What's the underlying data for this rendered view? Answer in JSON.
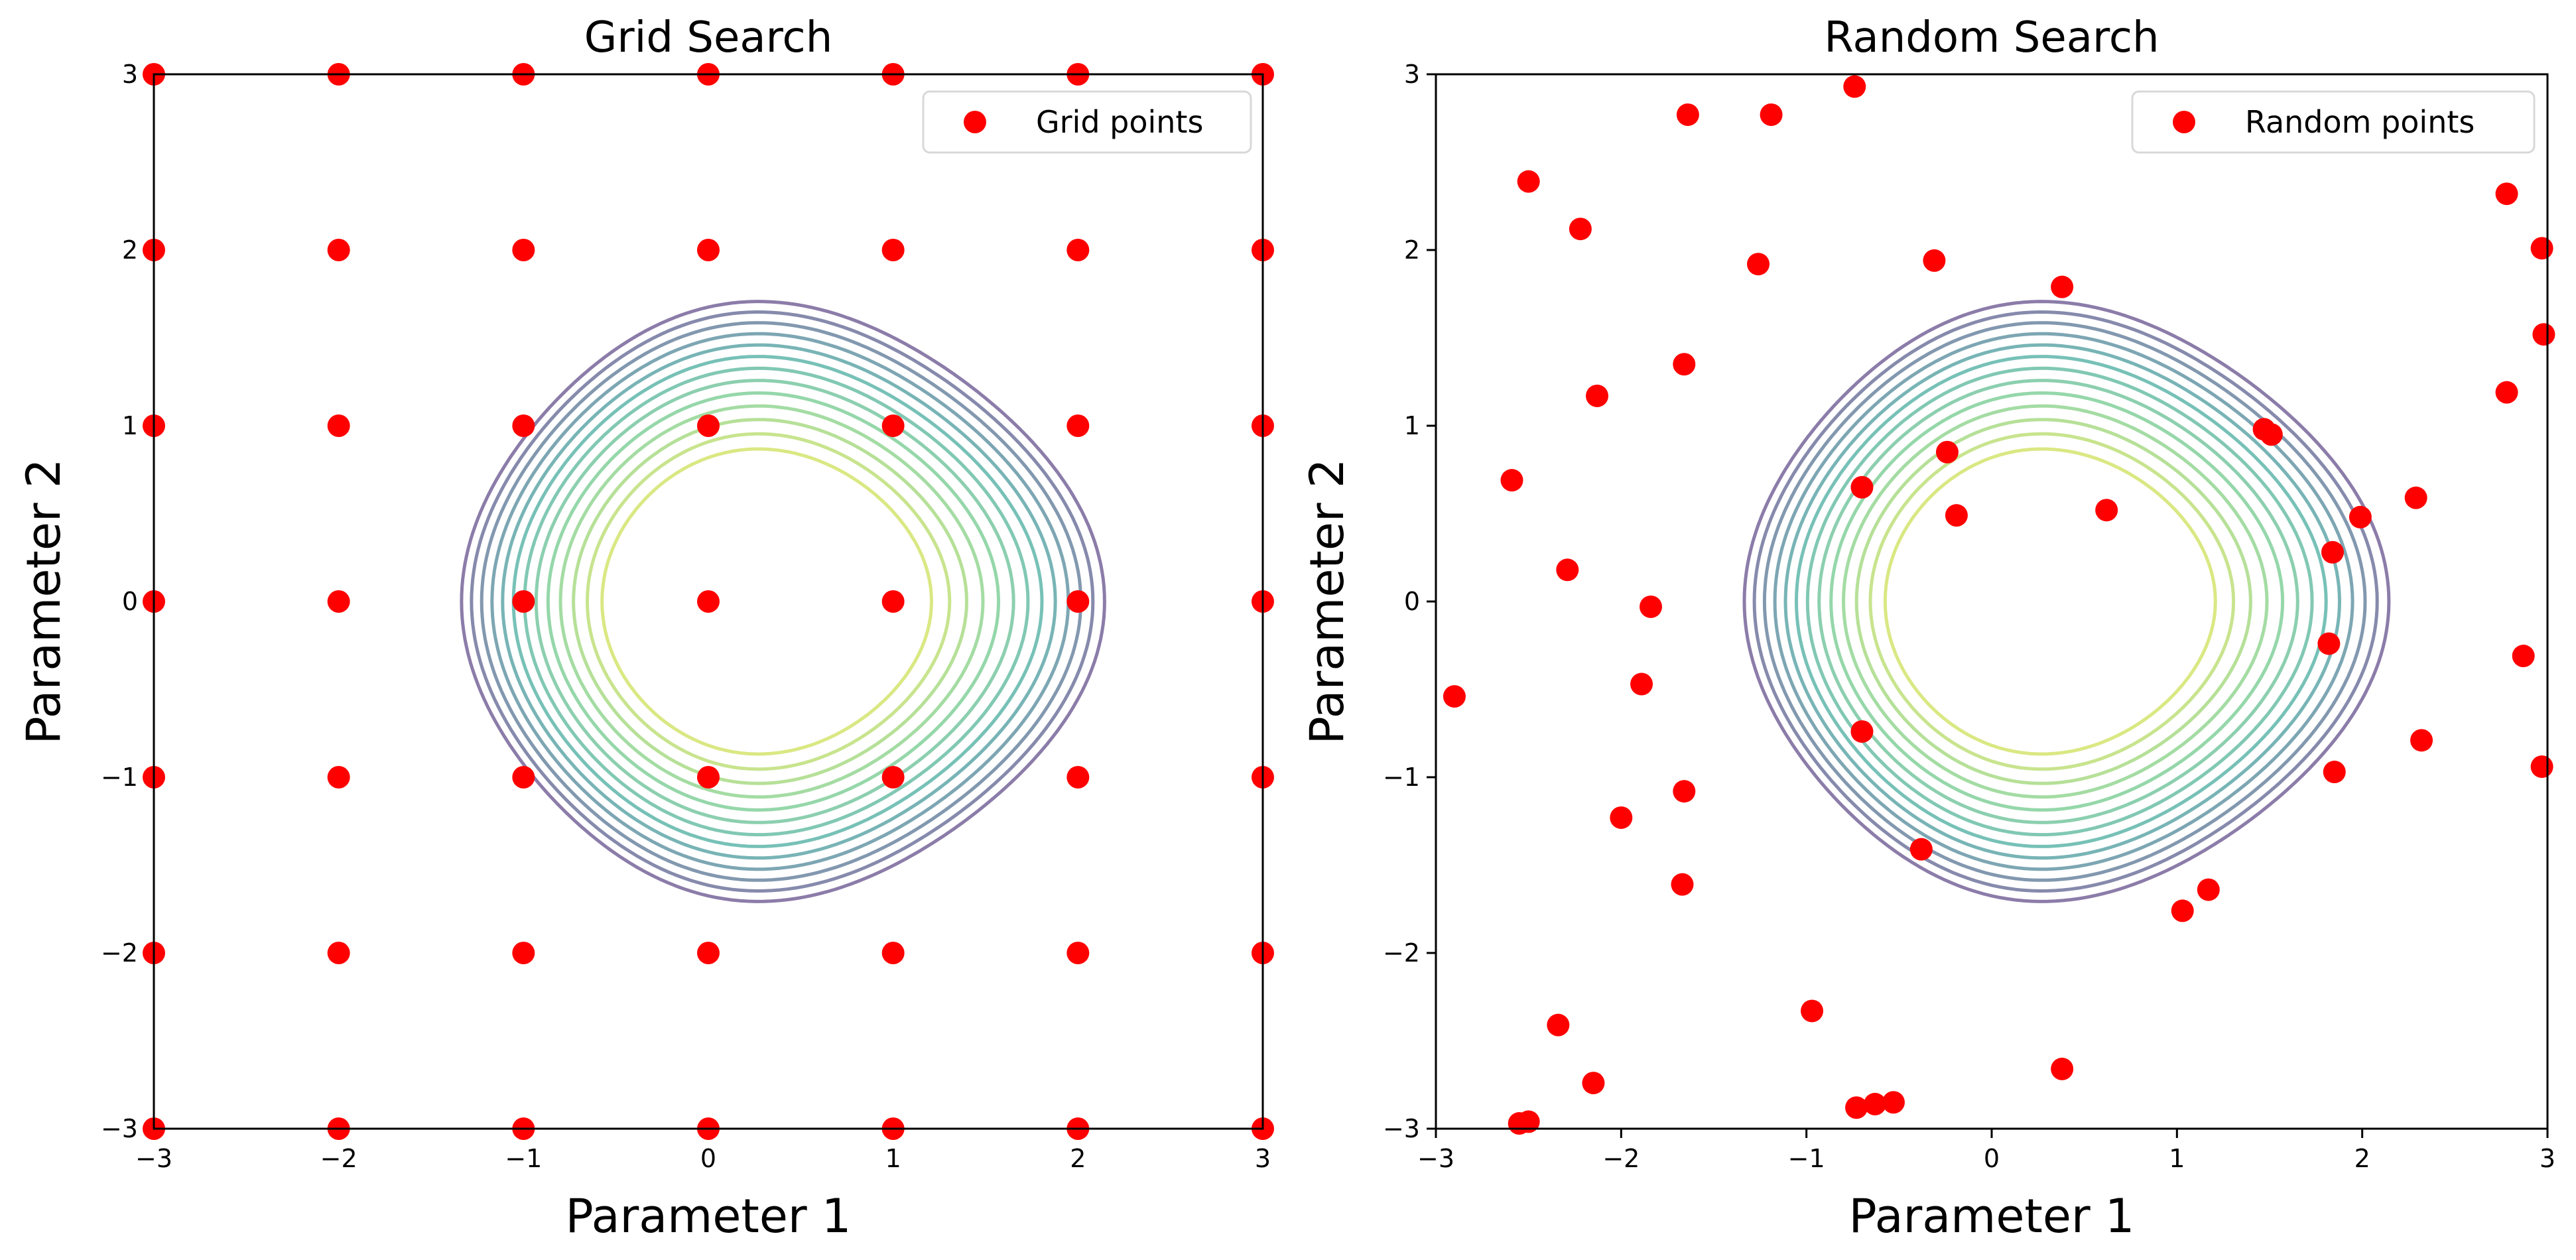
{
  "chart_data": [
    {
      "type": "scatter",
      "title": "Grid Search",
      "xlabel": "Parameter 1",
      "ylabel": "Parameter 2",
      "xlim": [
        -3,
        3
      ],
      "ylim": [
        -3,
        3
      ],
      "xticks": [
        -3,
        -2,
        -1,
        0,
        1,
        2,
        3
      ],
      "yticks": [
        -3,
        -2,
        -1,
        0,
        1,
        2,
        3
      ],
      "xtick_labels": [
        "−3",
        "−2",
        "−1",
        "0",
        "1",
        "2",
        "3"
      ],
      "ytick_labels": [
        "−3",
        "−2",
        "−1",
        "0",
        "1",
        "2",
        "3"
      ],
      "grid": false,
      "legend": {
        "position": "upper-right",
        "entries": [
          "Grid points"
        ]
      },
      "background": "contour",
      "series": [
        {
          "name": "Grid points",
          "color": "#ff0000",
          "points": [
            [
              -3,
              -3
            ],
            [
              -2,
              -3
            ],
            [
              -1,
              -3
            ],
            [
              0,
              -3
            ],
            [
              1,
              -3
            ],
            [
              2,
              -3
            ],
            [
              3,
              -3
            ],
            [
              -3,
              -2
            ],
            [
              -2,
              -2
            ],
            [
              -1,
              -2
            ],
            [
              0,
              -2
            ],
            [
              1,
              -2
            ],
            [
              2,
              -2
            ],
            [
              3,
              -2
            ],
            [
              -3,
              -1
            ],
            [
              -2,
              -1
            ],
            [
              -1,
              -1
            ],
            [
              0,
              -1
            ],
            [
              1,
              -1
            ],
            [
              2,
              -1
            ],
            [
              3,
              -1
            ],
            [
              -3,
              0
            ],
            [
              -2,
              0
            ],
            [
              -1,
              0
            ],
            [
              0,
              0
            ],
            [
              1,
              0
            ],
            [
              2,
              0
            ],
            [
              3,
              0
            ],
            [
              -3,
              1
            ],
            [
              -2,
              1
            ],
            [
              -1,
              1
            ],
            [
              0,
              1
            ],
            [
              1,
              1
            ],
            [
              2,
              1
            ],
            [
              3,
              1
            ],
            [
              -3,
              2
            ],
            [
              -2,
              2
            ],
            [
              -1,
              2
            ],
            [
              0,
              2
            ],
            [
              1,
              2
            ],
            [
              2,
              2
            ],
            [
              3,
              2
            ],
            [
              -3,
              3
            ],
            [
              -2,
              3
            ],
            [
              -1,
              3
            ],
            [
              0,
              3
            ],
            [
              1,
              3
            ],
            [
              2,
              3
            ],
            [
              3,
              3
            ]
          ]
        }
      ]
    },
    {
      "type": "scatter",
      "title": "Random Search",
      "xlabel": "Parameter 1",
      "ylabel": "Parameter 2",
      "xlim": [
        -3,
        3
      ],
      "ylim": [
        -3,
        3
      ],
      "xticks": [
        -3,
        -2,
        -1,
        0,
        1,
        2,
        3
      ],
      "yticks": [
        -3,
        -2,
        -1,
        0,
        1,
        2,
        3
      ],
      "xtick_labels": [
        "−3",
        "−2",
        "−1",
        "0",
        "1",
        "2",
        "3"
      ],
      "ytick_labels": [
        "−3",
        "−2",
        "−1",
        "0",
        "1",
        "2",
        "3"
      ],
      "grid": false,
      "legend": {
        "position": "upper-right",
        "entries": [
          "Random points"
        ]
      },
      "background": "contour",
      "series": [
        {
          "name": "Random points",
          "color": "#ff0000",
          "points": [
            [
              -0.74,
              2.93
            ],
            [
              -1.64,
              2.77
            ],
            [
              -1.19,
              2.77
            ],
            [
              -2.5,
              2.39
            ],
            [
              -2.22,
              2.12
            ],
            [
              2.78,
              2.32
            ],
            [
              2.97,
              2.01
            ],
            [
              -1.26,
              1.92
            ],
            [
              -0.31,
              1.94
            ],
            [
              0.38,
              1.79
            ],
            [
              2.98,
              1.52
            ],
            [
              -1.66,
              1.35
            ],
            [
              -2.13,
              1.17
            ],
            [
              2.78,
              1.19
            ],
            [
              1.47,
              0.98
            ],
            [
              1.51,
              0.95
            ],
            [
              -0.24,
              0.85
            ],
            [
              -2.59,
              0.69
            ],
            [
              -0.7,
              0.65
            ],
            [
              2.29,
              0.59
            ],
            [
              1.99,
              0.48
            ],
            [
              -0.19,
              0.49
            ],
            [
              0.62,
              0.52
            ],
            [
              1.84,
              0.28
            ],
            [
              -2.29,
              0.18
            ],
            [
              -1.84,
              -0.03
            ],
            [
              1.82,
              -0.24
            ],
            [
              2.87,
              -0.31
            ],
            [
              -1.89,
              -0.47
            ],
            [
              -2.9,
              -0.54
            ],
            [
              -0.7,
              -0.74
            ],
            [
              2.97,
              -0.94
            ],
            [
              1.85,
              -0.97
            ],
            [
              2.32,
              -0.79
            ],
            [
              -1.66,
              -1.08
            ],
            [
              -2.0,
              -1.23
            ],
            [
              -0.38,
              -1.41
            ],
            [
              -1.67,
              -1.61
            ],
            [
              1.17,
              -1.64
            ],
            [
              1.03,
              -1.76
            ],
            [
              -0.97,
              -2.33
            ],
            [
              -2.34,
              -2.41
            ],
            [
              0.38,
              -2.66
            ],
            [
              -2.15,
              -2.74
            ],
            [
              -0.53,
              -2.85
            ],
            [
              -0.63,
              -2.86
            ],
            [
              -0.73,
              -2.88
            ],
            [
              -2.55,
              -2.97
            ],
            [
              -2.5,
              -2.96
            ]
          ]
        }
      ]
    }
  ]
}
